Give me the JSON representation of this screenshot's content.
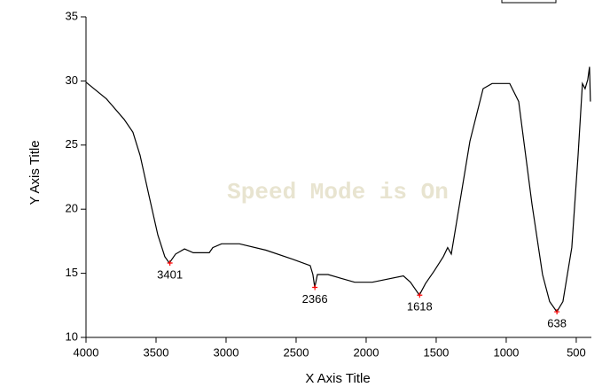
{
  "chart_data": {
    "type": "line",
    "xlabel": "X Axis Title",
    "ylabel": "Y Axis Title",
    "watermark": "Speed Mode is On",
    "xlim": [
      4000,
      392
    ],
    "ylim": [
      10,
      35
    ],
    "xticks": [
      4000,
      3500,
      3000,
      2500,
      2000,
      1500,
      1000,
      500
    ],
    "yticks": [
      10,
      15,
      20,
      25,
      30,
      35
    ],
    "color": "#000000",
    "marker_color": "#ff0000",
    "x": [
      4000,
      3854,
      3728,
      3665,
      3614,
      3551,
      3487,
      3437,
      3405,
      3361,
      3297,
      3234,
      3120,
      3095,
      3032,
      2905,
      2715,
      2525,
      2399,
      2380,
      2367,
      2348,
      2272,
      2082,
      1956,
      1734,
      1684,
      1620,
      1576,
      1513,
      1449,
      1418,
      1392,
      1354,
      1259,
      1165,
      1101,
      975,
      911,
      816,
      741,
      690,
      639,
      595,
      532,
      487,
      456,
      437,
      418,
      405,
      399
    ],
    "y": [
      29.9,
      28.6,
      27.0,
      26.0,
      24.2,
      21.1,
      18.0,
      16.3,
      15.8,
      16.5,
      16.9,
      16.6,
      16.6,
      17.0,
      17.3,
      17.3,
      16.8,
      16.1,
      15.6,
      14.9,
      13.9,
      14.9,
      14.9,
      14.3,
      14.3,
      14.8,
      14.3,
      13.3,
      14.2,
      15.2,
      16.3,
      17.0,
      16.5,
      19.0,
      25.3,
      29.4,
      29.8,
      29.8,
      28.4,
      20.4,
      14.9,
      12.8,
      12.0,
      12.8,
      17.0,
      24.2,
      29.8,
      29.4,
      30.1,
      31.1,
      28.4
    ],
    "annotations": [
      {
        "text": "3401",
        "x": 3401,
        "y": 15.8
      },
      {
        "text": "2366",
        "x": 2366,
        "y": 13.9
      },
      {
        "text": "1618",
        "x": 1618,
        "y": 13.3
      },
      {
        "text": "638",
        "x": 638,
        "y": 12.0
      }
    ]
  }
}
